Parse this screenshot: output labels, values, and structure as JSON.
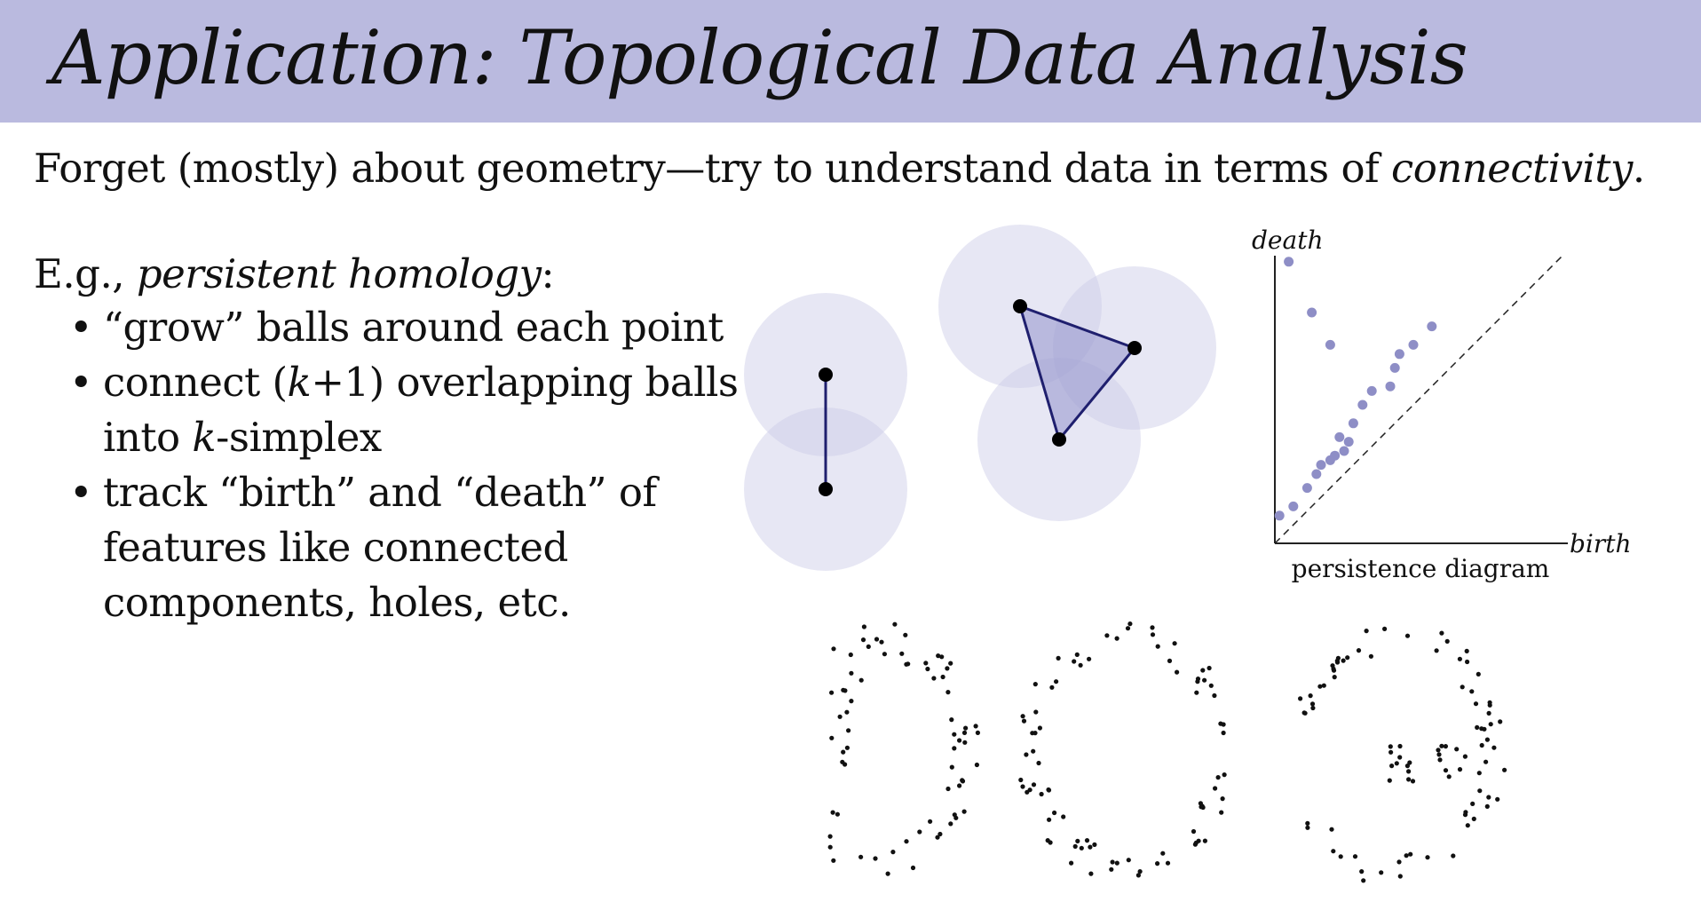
{
  "slide": {
    "title": "Application: Topological Data Analysis",
    "lead": {
      "before": "Forget (mostly) about geometry—try to understand data in terms of ",
      "emphasis": "connectivity",
      "after": "."
    },
    "eg": {
      "prefix": "E.g., ",
      "emphasis": "persistent homology",
      "suffix": ":"
    },
    "bullets": [
      {
        "lines": [
          {
            "parts": [
              "“grow” balls around each point"
            ]
          }
        ]
      },
      {
        "lines": [
          {
            "parts": [
              "connect (",
              "k",
              "+1) overlapping balls"
            ]
          },
          {
            "parts": [
              "into ",
              "k",
              "-simplex"
            ]
          }
        ]
      },
      {
        "lines": [
          {
            "parts": [
              "track “birth” and “death” of"
            ]
          },
          {
            "parts": [
              "features like connected"
            ]
          },
          {
            "parts": [
              "components, holes, etc."
            ]
          }
        ]
      }
    ]
  },
  "diagram": {
    "ball_color": "#c9c9e6",
    "edge_color": "#1f1f6e",
    "triangle_fill": "#8c8cc8"
  },
  "persistence": {
    "caption": "persistence diagram",
    "xlabel": "birth",
    "ylabel": "death",
    "point_color": "#8e8ec6",
    "points": [
      [
        0.1,
        0.6
      ],
      [
        0.4,
        0.8
      ],
      [
        0.7,
        1.2
      ],
      [
        0.9,
        1.5
      ],
      [
        1.0,
        1.7
      ],
      [
        1.2,
        1.8
      ],
      [
        1.3,
        1.9
      ],
      [
        1.5,
        2.0
      ],
      [
        1.6,
        2.2
      ],
      [
        1.4,
        2.3
      ],
      [
        1.7,
        2.6
      ],
      [
        1.9,
        3.0
      ],
      [
        2.1,
        3.3
      ],
      [
        2.5,
        3.4
      ],
      [
        2.6,
        3.8
      ],
      [
        2.7,
        4.1
      ],
      [
        3.0,
        4.3
      ],
      [
        3.4,
        4.7
      ],
      [
        1.2,
        4.3
      ],
      [
        0.8,
        5.0
      ],
      [
        0.3,
        6.1
      ]
    ]
  }
}
